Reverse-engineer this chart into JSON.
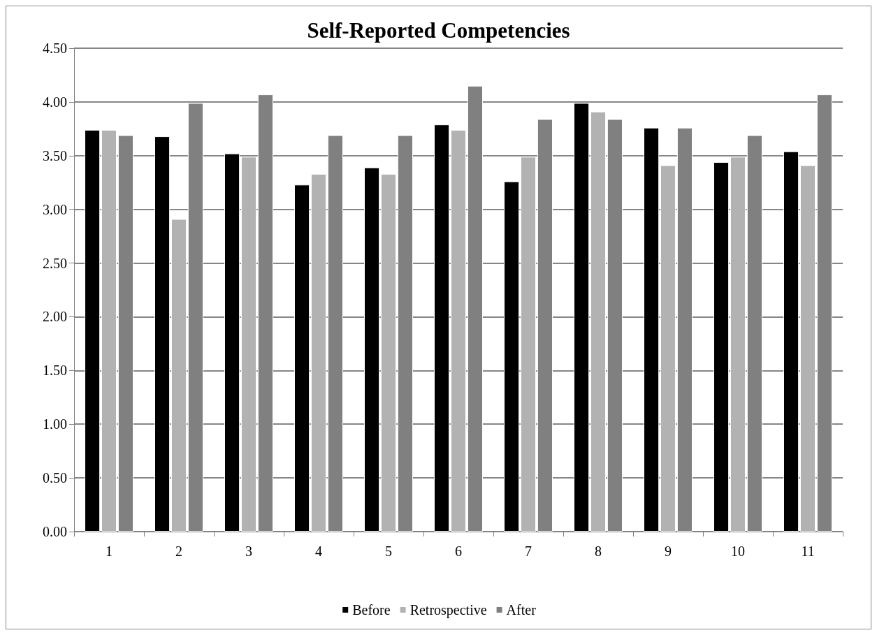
{
  "chart_data": {
    "type": "bar",
    "title": "Self-Reported Competencies",
    "categories": [
      "1",
      "2",
      "3",
      "4",
      "5",
      "6",
      "7",
      "8",
      "9",
      "10",
      "11"
    ],
    "series": [
      {
        "name": "Before",
        "color": "#000000",
        "values": [
          3.74,
          3.68,
          3.52,
          3.23,
          3.39,
          3.79,
          3.26,
          3.99,
          3.76,
          3.44,
          3.54
        ]
      },
      {
        "name": "Retrospective",
        "color": "#b2b2b2",
        "values": [
          3.74,
          2.91,
          3.49,
          3.33,
          3.33,
          3.74,
          3.49,
          3.91,
          3.41,
          3.49,
          3.41
        ]
      },
      {
        "name": "After",
        "color": "#808080",
        "values": [
          3.69,
          3.99,
          4.07,
          3.69,
          3.69,
          4.15,
          3.84,
          3.84,
          3.76,
          3.69,
          4.07
        ]
      }
    ],
    "ylim": [
      0,
      4.5
    ],
    "yticks": [
      {
        "value": 0,
        "label": "0.00"
      },
      {
        "value": 0.5,
        "label": "0.50"
      },
      {
        "value": 1,
        "label": "1.00"
      },
      {
        "value": 1.5,
        "label": "1.50"
      },
      {
        "value": 2,
        "label": "2.00"
      },
      {
        "value": 2.5,
        "label": "2.50"
      },
      {
        "value": 3,
        "label": "3.00"
      },
      {
        "value": 3.5,
        "label": "3.50"
      },
      {
        "value": 4,
        "label": "4.00"
      },
      {
        "value": 4.5,
        "label": "4.50"
      }
    ],
    "grid": "y",
    "legend": "bottom"
  }
}
